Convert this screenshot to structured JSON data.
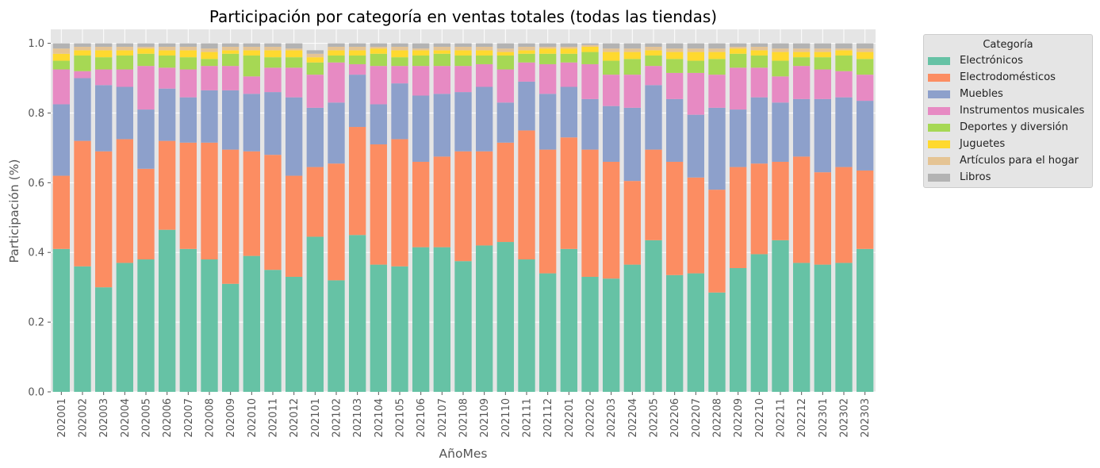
{
  "chart_data": {
    "type": "bar",
    "stacked": true,
    "title": "Participación por categoría en ventas totales (todas las tiendas)",
    "xlabel": "AñoMes",
    "ylabel": "Participación (%)",
    "ylim": [
      0,
      1.04
    ],
    "yticks": [
      "0.0",
      "0.2",
      "0.4",
      "0.6",
      "0.8",
      "1.0"
    ],
    "grid": true,
    "legend_title": "Categoría",
    "legend_position": "outside-top-right",
    "categories": [
      "202001",
      "202002",
      "202003",
      "202004",
      "202005",
      "202006",
      "202007",
      "202008",
      "202009",
      "202010",
      "202011",
      "202012",
      "202101",
      "202102",
      "202103",
      "202104",
      "202105",
      "202106",
      "202107",
      "202108",
      "202109",
      "202110",
      "202111",
      "202112",
      "202201",
      "202202",
      "202203",
      "202204",
      "202205",
      "202206",
      "202207",
      "202208",
      "202209",
      "202210",
      "202211",
      "202212",
      "202301",
      "202302",
      "202303"
    ],
    "series": [
      {
        "name": "Electrónicos",
        "color": "#66c2a5",
        "values": [
          0.41,
          0.36,
          0.3,
          0.37,
          0.38,
          0.465,
          0.41,
          0.38,
          0.31,
          0.39,
          0.35,
          0.33,
          0.445,
          0.32,
          0.45,
          0.365,
          0.36,
          0.415,
          0.415,
          0.375,
          0.42,
          0.43,
          0.38,
          0.34,
          0.41,
          0.33,
          0.325,
          0.365,
          0.435,
          0.335,
          0.34,
          0.285,
          0.355,
          0.395,
          0.435,
          0.37,
          0.365,
          0.37,
          0.41
        ]
      },
      {
        "name": "Electrodomésticos",
        "color": "#fc8d62",
        "values": [
          0.21,
          0.36,
          0.39,
          0.355,
          0.26,
          0.255,
          0.305,
          0.335,
          0.385,
          0.3,
          0.33,
          0.29,
          0.2,
          0.335,
          0.31,
          0.345,
          0.365,
          0.245,
          0.26,
          0.315,
          0.27,
          0.285,
          0.37,
          0.355,
          0.32,
          0.365,
          0.335,
          0.24,
          0.26,
          0.325,
          0.275,
          0.295,
          0.29,
          0.26,
          0.225,
          0.305,
          0.265,
          0.275,
          0.225
        ]
      },
      {
        "name": "Muebles",
        "color": "#8da0cb",
        "values": [
          0.205,
          0.18,
          0.19,
          0.15,
          0.17,
          0.15,
          0.13,
          0.15,
          0.17,
          0.165,
          0.18,
          0.225,
          0.17,
          0.175,
          0.15,
          0.115,
          0.16,
          0.19,
          0.18,
          0.17,
          0.185,
          0.115,
          0.14,
          0.16,
          0.145,
          0.145,
          0.16,
          0.21,
          0.185,
          0.18,
          0.18,
          0.235,
          0.165,
          0.19,
          0.17,
          0.165,
          0.21,
          0.2,
          0.2
        ]
      },
      {
        "name": "Instrumentos musicales",
        "color": "#e78ac3",
        "values": [
          0.1,
          0.02,
          0.045,
          0.05,
          0.125,
          0.06,
          0.08,
          0.07,
          0.07,
          0.05,
          0.07,
          0.085,
          0.095,
          0.115,
          0.03,
          0.11,
          0.05,
          0.085,
          0.08,
          0.075,
          0.065,
          0.095,
          0.055,
          0.085,
          0.07,
          0.1,
          0.09,
          0.095,
          0.055,
          0.075,
          0.12,
          0.095,
          0.12,
          0.085,
          0.075,
          0.095,
          0.085,
          0.075,
          0.075
        ]
      },
      {
        "name": "Deportes y diversión",
        "color": "#a6d854",
        "values": [
          0.025,
          0.045,
          0.035,
          0.04,
          0.035,
          0.035,
          0.035,
          0.02,
          0.035,
          0.06,
          0.03,
          0.03,
          0.035,
          0.02,
          0.025,
          0.035,
          0.025,
          0.03,
          0.035,
          0.03,
          0.025,
          0.04,
          0.025,
          0.03,
          0.025,
          0.035,
          0.04,
          0.045,
          0.03,
          0.04,
          0.035,
          0.045,
          0.04,
          0.035,
          0.045,
          0.025,
          0.035,
          0.045,
          0.045
        ]
      },
      {
        "name": "Juguetes",
        "color": "#ffd92f",
        "values": [
          0.02,
          0.015,
          0.02,
          0.015,
          0.015,
          0.015,
          0.02,
          0.02,
          0.01,
          0.015,
          0.02,
          0.02,
          0.015,
          0.015,
          0.015,
          0.015,
          0.02,
          0.015,
          0.01,
          0.015,
          0.015,
          0.01,
          0.01,
          0.015,
          0.015,
          0.015,
          0.025,
          0.02,
          0.015,
          0.02,
          0.025,
          0.02,
          0.015,
          0.015,
          0.025,
          0.015,
          0.015,
          0.015,
          0.02
        ]
      },
      {
        "name": "Artículos para el hogar",
        "color": "#e5c494",
        "values": [
          0.015,
          0.01,
          0.01,
          0.01,
          0.005,
          0.01,
          0.01,
          0.01,
          0.01,
          0.01,
          0.01,
          0.005,
          0.01,
          0.01,
          0.01,
          0.005,
          0.01,
          0.005,
          0.01,
          0.01,
          0.01,
          0.01,
          0.01,
          0.005,
          0.005,
          0.005,
          0.01,
          0.01,
          0.01,
          0.01,
          0.01,
          0.01,
          0.005,
          0.01,
          0.01,
          0.01,
          0.01,
          0.005,
          0.01
        ]
      },
      {
        "name": "Libros",
        "color": "#b3b3b3",
        "values": [
          0.015,
          0.01,
          0.01,
          0.01,
          0.01,
          0.01,
          0.01,
          0.015,
          0.01,
          0.01,
          0.01,
          0.015,
          0.01,
          0.01,
          0.01,
          0.01,
          0.01,
          0.015,
          0.01,
          0.01,
          0.01,
          0.015,
          0.01,
          0.01,
          0.01,
          0.005,
          0.015,
          0.015,
          0.01,
          0.015,
          0.015,
          0.015,
          0.01,
          0.01,
          0.015,
          0.015,
          0.015,
          0.015,
          0.015
        ]
      }
    ]
  }
}
